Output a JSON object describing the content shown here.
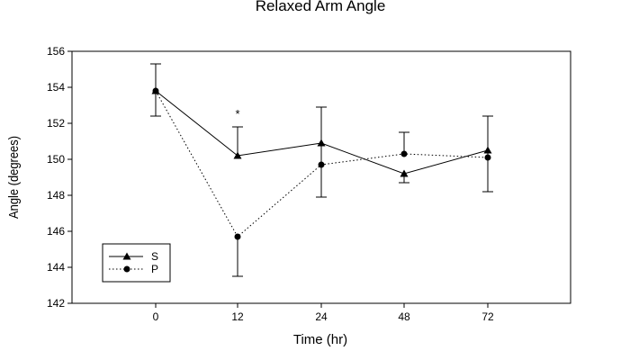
{
  "chart_data": {
    "type": "line",
    "title": "Relaxed Arm Angle",
    "xlabel": "Time (hr)",
    "ylabel": "Angle (degrees)",
    "categories": [
      "0",
      "12",
      "24",
      "48",
      "72"
    ],
    "ylim": [
      142,
      156
    ],
    "yticks": [
      "142",
      "144",
      "146",
      "148",
      "150",
      "152",
      "154",
      "156"
    ],
    "grid": false,
    "legend_position": "bottom-left",
    "series": [
      {
        "name": "S",
        "marker": "triangle",
        "line_style": "solid",
        "values": [
          153.8,
          150.2,
          150.9,
          149.2,
          150.5
        ],
        "error_low": [
          null,
          null,
          147.9,
          148.7,
          148.2
        ],
        "error_high": [
          null,
          151.8,
          152.9,
          null,
          152.4
        ]
      },
      {
        "name": "P",
        "marker": "circle",
        "line_style": "dotted",
        "values": [
          153.8,
          145.7,
          149.7,
          150.3,
          150.1
        ],
        "error_low": [
          152.4,
          143.5,
          null,
          null,
          null
        ],
        "error_high": [
          155.3,
          null,
          null,
          151.5,
          null
        ]
      }
    ],
    "annotations": [
      {
        "text": "*",
        "category": "12",
        "y": 152.5
      }
    ]
  }
}
